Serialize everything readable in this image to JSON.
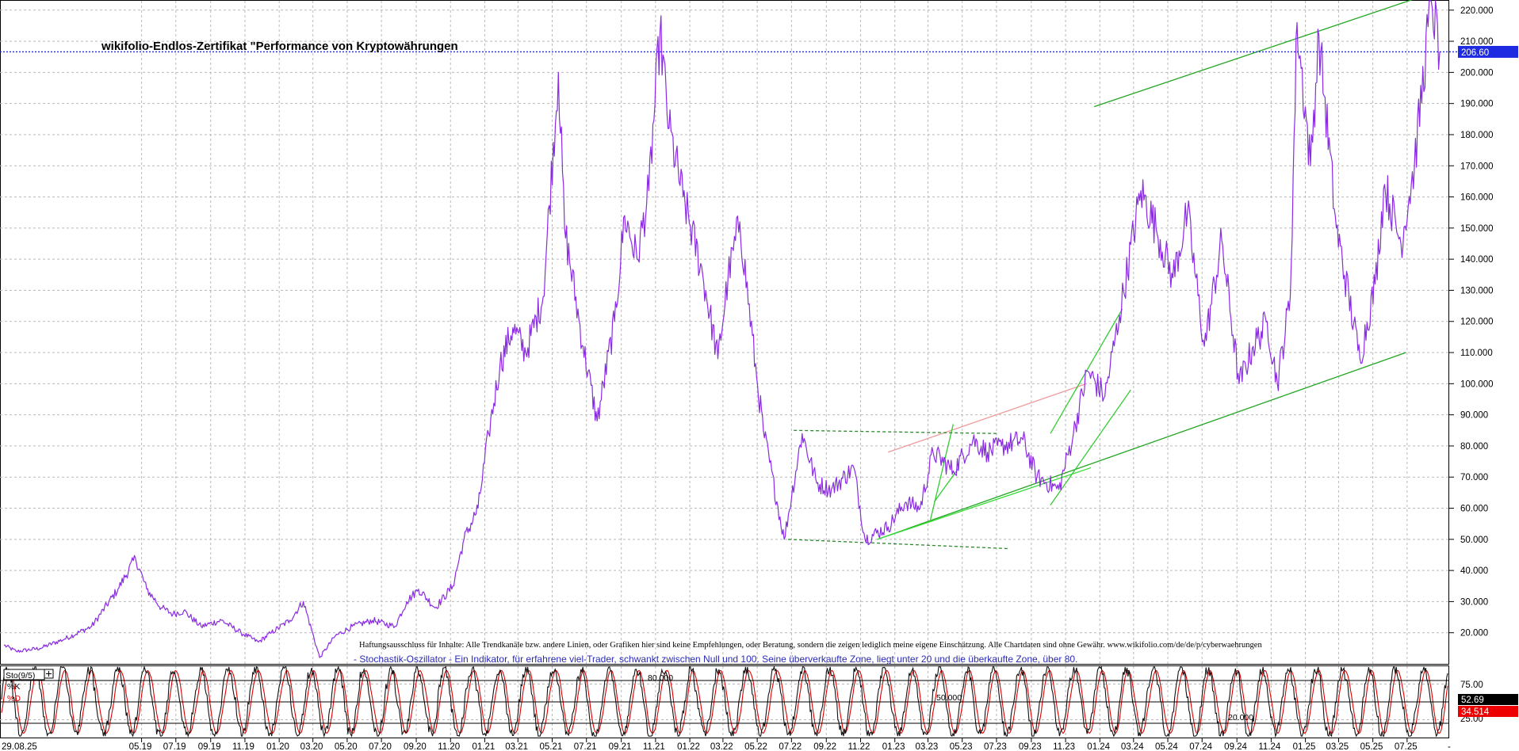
{
  "chart_data": [
    {
      "type": "line",
      "title": "wikifolio-Endlos-Zertifikat \"Performance von Kryptowährungen",
      "ylim": [
        10,
        223
      ],
      "ytick_labels": [
        "20.000",
        "30.000",
        "40.000",
        "50.000",
        "60.000",
        "70.000",
        "80.000",
        "90.000",
        "100.000",
        "110.000",
        "120.000",
        "130.000",
        "140.000",
        "150.000",
        "160.000",
        "170.000",
        "180.000",
        "190.000",
        "200.000",
        "210.000",
        "220.000"
      ],
      "grid": true,
      "last_value": 206.6,
      "last_value_label": "206.60",
      "series": [
        {
          "color": "#8a2be2",
          "x": [
            "2018-08-29",
            "2018-09-20",
            "2018-11-01",
            "2018-12-15",
            "2019-02-01",
            "2019-03-20",
            "2019-04-20",
            "2019-05-10",
            "2019-06-05",
            "2019-06-26",
            "2019-07-15",
            "2019-08-15",
            "2019-09-20",
            "2019-10-25",
            "2019-11-25",
            "2019-12-18",
            "2020-01-20",
            "2020-02-13",
            "2020-03-13",
            "2020-04-10",
            "2020-05-10",
            "2020-06-15",
            "2020-07-25",
            "2020-08-15",
            "2020-09-05",
            "2020-10-05",
            "2020-11-05",
            "2020-11-25",
            "2020-12-20",
            "2021-01-08",
            "2021-01-28",
            "2021-02-20",
            "2021-03-15",
            "2021-04-15",
            "2021-05-12",
            "2021-05-23",
            "2021-06-25",
            "2021-07-20",
            "2021-08-20",
            "2021-09-07",
            "2021-09-29",
            "2021-10-20",
            "2021-11-09",
            "2021-11-25",
            "2021-12-20",
            "2022-01-24",
            "2022-02-20",
            "2022-03-10",
            "2022-03-31",
            "2022-04-30",
            "2022-05-12",
            "2022-06-18",
            "2022-07-20",
            "2022-08-15",
            "2022-09-10",
            "2022-10-20",
            "2022-11-09",
            "2022-12-20",
            "2023-01-20",
            "2023-02-15",
            "2023-03-10",
            "2023-04-15",
            "2023-05-20",
            "2023-06-15",
            "2023-07-10",
            "2023-08-17",
            "2023-09-11",
            "2023-10-20",
            "2023-11-15",
            "2023-12-10",
            "2024-01-10",
            "2024-02-05",
            "2024-03-14",
            "2024-04-10",
            "2024-05-10",
            "2024-06-05",
            "2024-07-05",
            "2024-08-05",
            "2024-09-05",
            "2024-09-30",
            "2024-10-25",
            "2024-11-12",
            "2024-12-05",
            "2024-12-17",
            "2025-01-10",
            "2025-01-25",
            "2025-02-25",
            "2025-04-08",
            "2025-05-05",
            "2025-05-22",
            "2025-06-20",
            "2025-07-14",
            "2025-08-13",
            "2025-08-28"
          ],
          "values": [
            16,
            14,
            15,
            18,
            22,
            34,
            44,
            34,
            28,
            26,
            27,
            22,
            24,
            20,
            17,
            20,
            24,
            30,
            12,
            19,
            22,
            24,
            22,
            30,
            34,
            28,
            35,
            50,
            60,
            84,
            106,
            118,
            110,
            128,
            200,
            150,
            112,
            88,
            120,
            154,
            140,
            162,
            213,
            182,
            160,
            135,
            108,
            134,
            152,
            102,
            85,
            50,
            84,
            68,
            66,
            73,
            50,
            54,
            62,
            60,
            78,
            72,
            82,
            78,
            80,
            82,
            70,
            66,
            84,
            104,
            96,
            122,
            162,
            150,
            134,
            155,
            112,
            146,
            100,
            112,
            120,
            100,
            128,
            216,
            170,
            212,
            150,
            108,
            132,
            164,
            145,
            170,
            224,
            206.6
          ]
        }
      ],
      "trendlines": [
        {
          "style": "solid",
          "color": "#21a621",
          "points": [
            [
              "2023-12-22",
              189
            ],
            [
              "2025-09-08",
              227
            ]
          ]
        },
        {
          "style": "solid",
          "color": "#21a621",
          "points": [
            [
              "2022-12-01",
              50
            ],
            [
              "2025-06-29",
              110
            ]
          ]
        },
        {
          "style": "solid",
          "color": "#33dd33",
          "points": [
            [
              "2022-12-01",
              50
            ],
            [
              "2023-12-16",
              73
            ]
          ]
        },
        {
          "style": "solid",
          "color": "#f09a9a",
          "points": [
            [
              "2022-12-20",
              78
            ],
            [
              "2023-12-08",
              100
            ]
          ]
        },
        {
          "style": "solid",
          "color": "#33cc33",
          "points": [
            [
              "2023-03-05",
              56
            ],
            [
              "2023-04-15",
              87
            ]
          ]
        },
        {
          "style": "solid",
          "color": "#33cc33",
          "points": [
            [
              "2023-03-12",
              62
            ],
            [
              "2023-04-25",
              73
            ]
          ]
        },
        {
          "style": "solid",
          "color": "#33cc33",
          "points": [
            [
              "2023-10-05",
              84
            ],
            [
              "2024-02-10",
              124
            ]
          ]
        },
        {
          "style": "solid",
          "color": "#33cc33",
          "points": [
            [
              "2023-10-05",
              61
            ],
            [
              "2024-02-25",
              98
            ]
          ]
        },
        {
          "style": "dashed",
          "color": "#2a8a2a",
          "points": [
            [
              "2022-07-05",
              85
            ],
            [
              "2023-07-01",
              84
            ]
          ]
        },
        {
          "style": "dashed",
          "color": "#2a8a2a",
          "points": [
            [
              "2022-06-25",
              50
            ],
            [
              "2023-07-25",
              47
            ]
          ]
        }
      ]
    },
    {
      "type": "line",
      "legend": [
        "Sto(9/5)",
        "%K",
        "%D"
      ],
      "title": "- Stochastik-Oszillator - Ein Indikator, für erfahrene viel-Trader, schwankt zwischen Null und 100. Seine überverkaufte Zone, liegt unter 20 und die überkaufte Zone, über 80.",
      "ylim": [
        0,
        100
      ],
      "ytick_labels": [
        "25.00",
        "75.00"
      ],
      "level_labels": [
        "80.000",
        "50.000",
        "20.000"
      ],
      "levels": [
        80,
        50,
        20
      ],
      "series": [
        {
          "name": "%K",
          "color": "#000000",
          "last_value_label": "52.69"
        },
        {
          "name": "%D",
          "color": "#dd0000",
          "last_value_label": "34.514"
        }
      ]
    }
  ],
  "disclaimer": "Haftungsausschluss für Inhalte: Alle Trendkanäle bzw. andere Linien, oder Grafiken hier sind keine Empfehlungen, oder Beratung, sondern die zeigen lediglich meine eigene Einschätzung. Alle Chartdaten sind ohne Gewähr.  www.wikifolio.com/de/de/p/cyberwaehrungen",
  "x_axis": {
    "labels": [
      "29.08.25",
      "05.19",
      "07.19",
      "09.19",
      "11.19",
      "01.20",
      "03.20",
      "05.20",
      "07.20",
      "09.20",
      "11.20",
      "01.21",
      "03.21",
      "05.21",
      "07.21",
      "09.21",
      "11.21",
      "01.22",
      "03.22",
      "05.22",
      "07.22",
      "09.22",
      "11.22",
      "01.23",
      "03.23",
      "05.23",
      "07.23",
      "09.23",
      "11.23",
      "01.24",
      "03.24",
      "05.24",
      "07.24",
      "09.24",
      "11.24",
      "01.25",
      "03.25",
      "05.25",
      "07.25"
    ],
    "end_marker": "-"
  }
}
